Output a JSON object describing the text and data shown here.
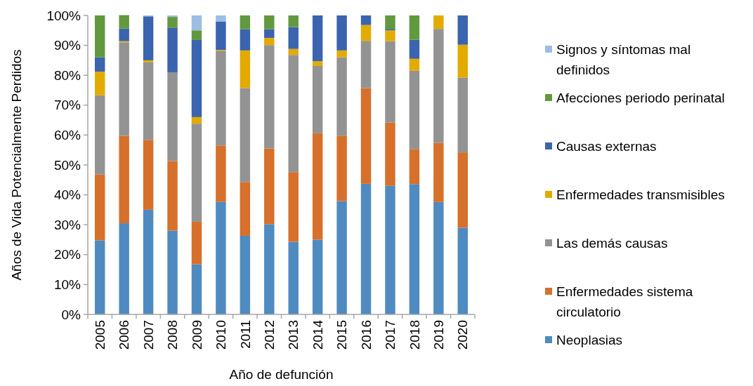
{
  "chart_data": {
    "type": "bar",
    "stacked": true,
    "xlabel": "Año de defunción",
    "ylabel": "Años de Vida Potencialmente Perdidos",
    "categories": [
      "2005",
      "2006",
      "2007",
      "2008",
      "2009",
      "2010",
      "2011",
      "2012",
      "2013",
      "2014",
      "2015",
      "2016",
      "2017",
      "2018",
      "2019",
      "2020"
    ],
    "series": [
      {
        "name": "Neoplasias",
        "color": "#4f8bc0",
        "values": [
          24.8,
          30.5,
          35.0,
          28.0,
          16.8,
          37.6,
          26.3,
          30.2,
          24.3,
          25.0,
          37.9,
          43.7,
          43.0,
          43.6,
          37.6,
          29.0
        ]
      },
      {
        "name": "Enfermedades sistema circulatorio",
        "color": "#d6702b",
        "values": [
          22.0,
          29.2,
          23.4,
          23.3,
          14.2,
          18.9,
          18.0,
          25.3,
          23.3,
          35.6,
          21.9,
          32.0,
          21.2,
          11.6,
          19.8,
          25.2
        ]
      },
      {
        "name": "Las demás causas",
        "color": "#939393",
        "values": [
          26.5,
          31.3,
          25.9,
          29.7,
          32.8,
          31.7,
          31.4,
          34.6,
          39.2,
          22.5,
          26.2,
          15.8,
          27.2,
          26.3,
          38.1,
          25.0
        ]
      },
      {
        "name": "Enfermedades transmisibles",
        "color": "#e3ab00",
        "values": [
          7.9,
          0.4,
          0.7,
          0,
          2.2,
          0.3,
          12.6,
          2.4,
          2.0,
          1.6,
          2.3,
          5.3,
          3.6,
          4.0,
          4.5,
          11.0
        ]
      },
      {
        "name": "Causas externas",
        "color": "#3b64ae",
        "values": [
          4.8,
          4.2,
          14.7,
          14.8,
          25.8,
          9.5,
          7.1,
          2.9,
          7.3,
          15.3,
          11.7,
          3.2,
          0.5,
          6.4,
          0,
          9.8
        ]
      },
      {
        "name": "Afecciones periodo perinatal",
        "color": "#62993e",
        "values": [
          14.0,
          4.5,
          0,
          3.7,
          3.2,
          0,
          4.6,
          4.6,
          3.9,
          0,
          0,
          0,
          4.5,
          8.1,
          0,
          0
        ]
      },
      {
        "name": "Signos y síntomas mal definidos",
        "color": "#9dbde3",
        "values": [
          0,
          0,
          0.3,
          0.5,
          5.0,
          2.0,
          0,
          0,
          0,
          0,
          0,
          0,
          0,
          0,
          0,
          0
        ]
      }
    ],
    "ylim": [
      0,
      100
    ],
    "yticks": [
      {
        "value": 0,
        "label": "0%"
      },
      {
        "value": 10,
        "label": "10%"
      },
      {
        "value": 20,
        "label": "20%"
      },
      {
        "value": 30,
        "label": "30%"
      },
      {
        "value": 40,
        "label": "40%"
      },
      {
        "value": 50,
        "label": "50%"
      },
      {
        "value": 60,
        "label": "60%"
      },
      {
        "value": 70,
        "label": "70%"
      },
      {
        "value": 80,
        "label": "80%"
      },
      {
        "value": 90,
        "label": "90%"
      },
      {
        "value": 100,
        "label": "100%"
      }
    ],
    "grid": false,
    "legend": "right"
  }
}
